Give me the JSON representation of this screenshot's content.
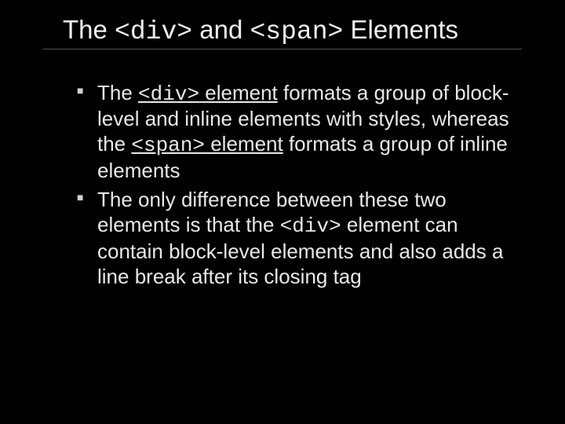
{
  "background_color": "#000000",
  "text_color": "#e8e8e8",
  "rule_color": "#555555",
  "title": {
    "fontsize": 33,
    "parts": {
      "p1": "The ",
      "c1": "<div>",
      "p2": " and ",
      "c2": "<span>",
      "p3": " Elements"
    }
  },
  "bullets": {
    "fontsize": 26,
    "item1": {
      "p1": "The ",
      "c1": "<div>",
      "u1": " element",
      "p2": " formats a group of block-level and inline elements with styles, whereas the ",
      "c2": "<span>",
      "u2": " element",
      "p3": " formats a group of inline elements"
    },
    "item2": {
      "p1": "The only difference between these two elements is that the ",
      "c1": "<div>",
      "p2": " element can contain block-level elements and also adds a line break after its closing tag"
    }
  }
}
